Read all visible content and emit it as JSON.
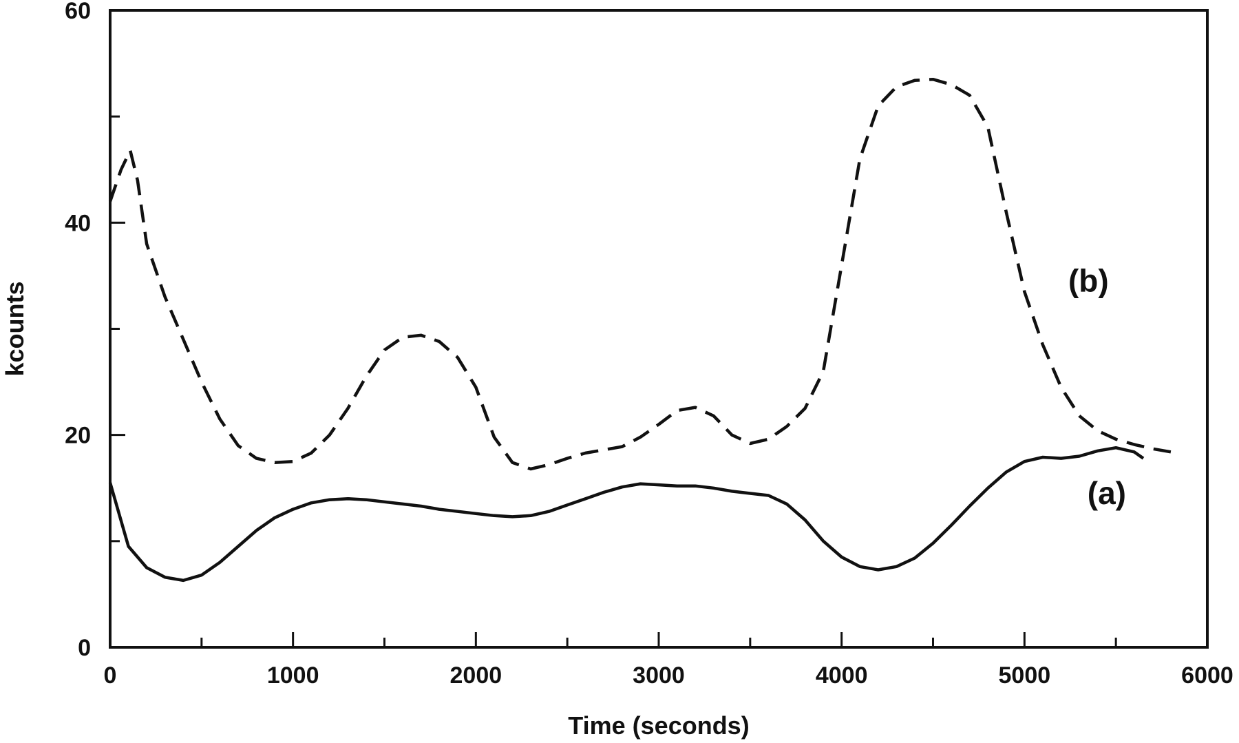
{
  "chart_data": {
    "type": "line",
    "xlabel": "Time (seconds)",
    "ylabel": "kcounts",
    "xlim": [
      0,
      6000
    ],
    "ylim": [
      0,
      60
    ],
    "x_ticks": [
      0,
      1000,
      2000,
      3000,
      4000,
      5000,
      6000
    ],
    "x_tick_labels": [
      "0",
      "1000",
      "2000",
      "3000",
      "4000",
      "5000",
      "6000"
    ],
    "y_ticks": [
      0,
      20,
      40,
      60
    ],
    "y_tick_labels": [
      "0",
      "20",
      "40",
      "60"
    ],
    "grid": false,
    "legend": "none",
    "series": [
      {
        "name": "(a)",
        "style": "solid",
        "color": "#111111",
        "x": [
          0,
          100,
          200,
          300,
          400,
          500,
          600,
          700,
          800,
          900,
          1000,
          1100,
          1200,
          1300,
          1400,
          1500,
          1600,
          1700,
          1800,
          1900,
          2000,
          2100,
          2200,
          2300,
          2400,
          2500,
          2600,
          2700,
          2800,
          2900,
          3000,
          3100,
          3200,
          3300,
          3400,
          3500,
          3600,
          3700,
          3800,
          3900,
          4000,
          4100,
          4200,
          4300,
          4400,
          4500,
          4600,
          4700,
          4800,
          4900,
          5000,
          5100,
          5200,
          5300,
          5400,
          5500,
          5600,
          5650
        ],
        "y": [
          15.5,
          9.5,
          7.5,
          6.6,
          6.3,
          6.8,
          8.0,
          9.5,
          11.0,
          12.2,
          13.0,
          13.6,
          13.9,
          14.0,
          13.9,
          13.7,
          13.5,
          13.3,
          13.0,
          12.8,
          12.6,
          12.4,
          12.3,
          12.4,
          12.8,
          13.4,
          14.0,
          14.6,
          15.1,
          15.4,
          15.3,
          15.2,
          15.2,
          15.0,
          14.7,
          14.5,
          14.3,
          13.5,
          12.0,
          10.0,
          8.5,
          7.6,
          7.3,
          7.6,
          8.4,
          9.8,
          11.5,
          13.3,
          15.0,
          16.5,
          17.5,
          17.9,
          17.8,
          18.0,
          18.5,
          18.8,
          18.4,
          17.8
        ]
      },
      {
        "name": "(b)",
        "style": "dashed",
        "color": "#111111",
        "x": [
          0,
          60,
          110,
          150,
          200,
          300,
          400,
          500,
          600,
          700,
          800,
          900,
          1000,
          1100,
          1200,
          1300,
          1400,
          1500,
          1600,
          1700,
          1800,
          1900,
          2000,
          2100,
          2200,
          2300,
          2400,
          2500,
          2600,
          2700,
          2800,
          2900,
          3000,
          3100,
          3200,
          3300,
          3400,
          3500,
          3600,
          3700,
          3800,
          3900,
          4000,
          4100,
          4200,
          4300,
          4400,
          4500,
          4600,
          4700,
          4800,
          4900,
          5000,
          5100,
          5200,
          5300,
          5400,
          5500,
          5600,
          5700,
          5800
        ],
        "y": [
          42.0,
          45.0,
          46.8,
          44.0,
          38.0,
          33.0,
          29.0,
          25.0,
          21.5,
          19.0,
          17.8,
          17.4,
          17.5,
          18.3,
          20.0,
          22.5,
          25.5,
          28.0,
          29.2,
          29.4,
          28.8,
          27.3,
          24.5,
          19.8,
          17.4,
          16.8,
          17.2,
          17.8,
          18.3,
          18.6,
          18.9,
          19.8,
          21.0,
          22.3,
          22.6,
          21.8,
          20.0,
          19.2,
          19.6,
          20.8,
          22.5,
          26.0,
          36.0,
          46.0,
          51.0,
          52.8,
          53.4,
          53.5,
          53.0,
          52.0,
          49.0,
          41.0,
          33.5,
          28.5,
          24.5,
          21.8,
          20.4,
          19.6,
          19.1,
          18.7,
          18.4
        ]
      }
    ],
    "annotations": [
      {
        "text": "(a)",
        "x": 5450,
        "y": 13.5
      },
      {
        "text": "(b)",
        "x": 5350,
        "y": 33.5
      }
    ]
  }
}
